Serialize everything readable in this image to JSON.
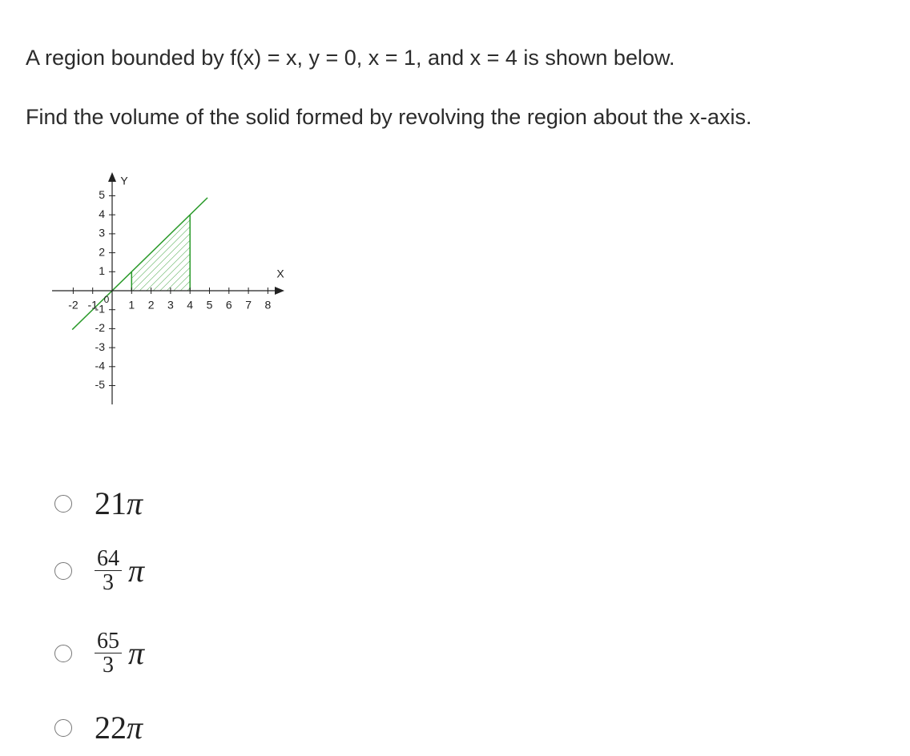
{
  "question": {
    "line1": "A region bounded by f(x) = x, y = 0, x = 1, and x = 4 is shown below.",
    "line2": "Find the volume of the solid formed by revolving the region about the x-axis."
  },
  "graph": {
    "x_label": "X",
    "y_label": "Y",
    "origin_label": "0",
    "xticks": [
      -2,
      -1,
      1,
      2,
      3,
      4,
      5,
      6,
      7,
      8
    ],
    "yticks": [
      5,
      4,
      3,
      2,
      1,
      -1,
      -2,
      -3,
      -4,
      -5
    ]
  },
  "options": [
    {
      "text": "21",
      "symbol": "π"
    },
    {
      "numerator": "64",
      "denominator": "3",
      "symbol": "π"
    },
    {
      "numerator": "65",
      "denominator": "3",
      "symbol": "π"
    },
    {
      "text": "22",
      "symbol": "π"
    }
  ]
}
